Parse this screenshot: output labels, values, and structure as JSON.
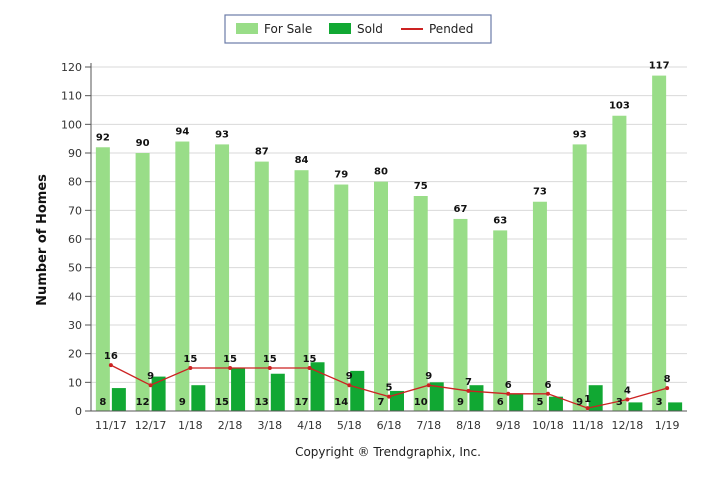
{
  "chart_data": {
    "type": "bar",
    "categories": [
      "11/17",
      "12/17",
      "1/18",
      "2/18",
      "3/18",
      "4/18",
      "5/18",
      "6/18",
      "7/18",
      "8/18",
      "9/18",
      "10/18",
      "11/18",
      "12/18",
      "1/19"
    ],
    "series": [
      {
        "name": "For Sale",
        "type": "bar",
        "color": "#99dd88",
        "values": [
          92,
          90,
          94,
          93,
          87,
          84,
          79,
          80,
          75,
          67,
          63,
          73,
          93,
          103,
          117
        ]
      },
      {
        "name": "Sold",
        "type": "bar",
        "color": "#11a833",
        "values": [
          8,
          12,
          9,
          15,
          13,
          17,
          14,
          7,
          10,
          9,
          6,
          5,
          9,
          3,
          3
        ]
      },
      {
        "name": "Pended",
        "type": "line",
        "color": "#cc2222",
        "values": [
          16,
          9,
          15,
          15,
          15,
          15,
          9,
          5,
          9,
          7,
          6,
          6,
          1,
          4,
          8
        ]
      }
    ],
    "ylabel": "Number of Homes",
    "ylim": [
      0,
      120
    ],
    "yticks": [
      0,
      10,
      20,
      30,
      40,
      50,
      60,
      70,
      80,
      90,
      100,
      110,
      120
    ],
    "grid": true,
    "legend_position": "top-center"
  },
  "footer": {
    "copyright": "Copyright ® Trendgraphix, Inc."
  }
}
